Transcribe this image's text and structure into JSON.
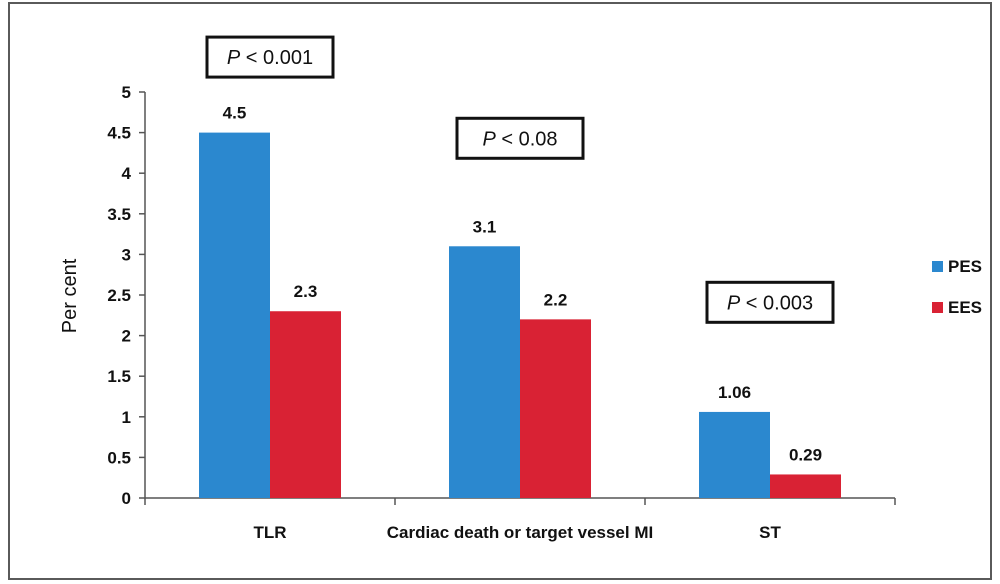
{
  "chart_data": {
    "type": "bar",
    "title": "",
    "xlabel": "",
    "ylabel": "Per cent",
    "ylim": [
      0,
      5
    ],
    "yticks": [
      "0",
      "0.5",
      "1",
      "1.5",
      "2",
      "2.5",
      "3",
      "3.5",
      "4",
      "4.5",
      "5"
    ],
    "grid": false,
    "legend_position": "right",
    "categories": [
      "TLR",
      "Cardiac death or target vessel MI",
      "ST"
    ],
    "series": [
      {
        "name": "PES",
        "color": "#2b88cf",
        "values": [
          4.5,
          3.1,
          1.06
        ],
        "labels": [
          "4.5",
          "3.1",
          "1.06"
        ]
      },
      {
        "name": "EES",
        "color": "#d92234",
        "values": [
          2.3,
          2.2,
          0.29
        ],
        "labels": [
          "2.3",
          "2.2",
          "0.29"
        ]
      }
    ],
    "annotations": [
      {
        "category_index": 0,
        "value": 5.43,
        "italic": "P",
        "rest": " < 0.001"
      },
      {
        "category_index": 1,
        "value": 4.43,
        "italic": "P",
        "rest": " < 0.08"
      },
      {
        "category_index": 2,
        "value": 2.41,
        "italic": "P",
        "rest": " < 0.003"
      }
    ]
  }
}
